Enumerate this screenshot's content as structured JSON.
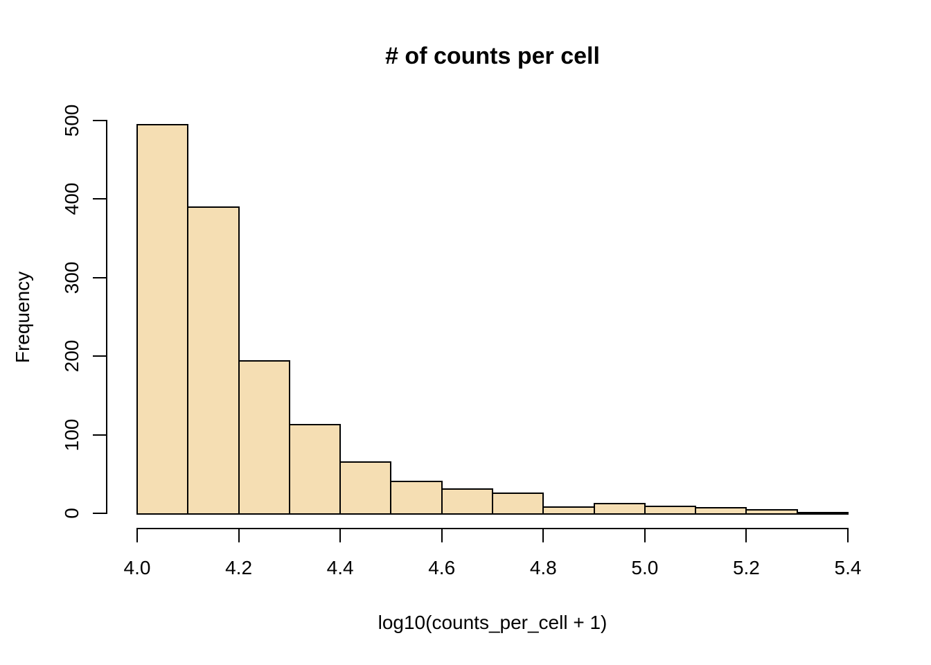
{
  "chart_data": {
    "type": "bar",
    "subtype": "histogram",
    "title": "# of counts per cell",
    "xlabel": "log10(counts_per_cell + 1)",
    "ylabel": "Frequency",
    "bin_edges": [
      4.0,
      4.1,
      4.2,
      4.3,
      4.4,
      4.5,
      4.6,
      4.7,
      4.8,
      4.9,
      5.0,
      5.1,
      5.2,
      5.3,
      5.4
    ],
    "values": [
      495,
      390,
      195,
      114,
      66,
      41,
      32,
      26,
      9,
      13,
      10,
      8,
      5,
      2
    ],
    "xlim": [
      4.0,
      5.4
    ],
    "ylim": [
      0,
      500
    ],
    "x_tick_values": [
      4.0,
      4.2,
      4.4,
      4.6,
      4.8,
      5.0,
      5.2,
      5.4
    ],
    "x_tick_labels": [
      "4.0",
      "4.2",
      "4.4",
      "4.6",
      "4.8",
      "5.0",
      "5.2",
      "5.4"
    ],
    "y_tick_values": [
      0,
      100,
      200,
      300,
      400,
      500
    ],
    "y_tick_labels": [
      "0",
      "100",
      "200",
      "300",
      "400",
      "500"
    ],
    "grid": false,
    "legend": null,
    "bar_fill_color": "#F5DEB3",
    "bar_border_color": "#000000",
    "background_color": "#FFFFFF",
    "text_color": "#000000"
  }
}
